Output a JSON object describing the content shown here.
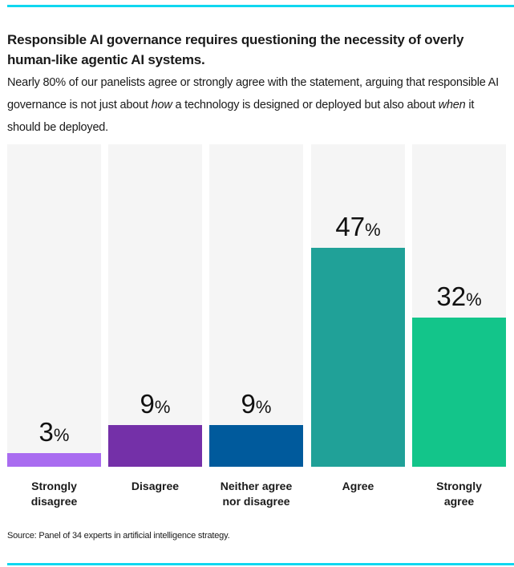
{
  "header": {
    "title": "Responsible AI governance requires questioning the necessity of overly human-like agentic AI systems.",
    "subtitle_parts": {
      "p1": "Nearly 80% of our panelists agree or strongly agree with the statement, arguing that responsible AI governance is not just about ",
      "em1": "how",
      "p2": " a technology is designed or deployed but also about ",
      "em2": "when",
      "p3": " it should be deployed."
    }
  },
  "chart_data": {
    "type": "bar",
    "title": "Responsible AI governance requires questioning the necessity of overly human-like agentic AI systems.",
    "xlabel": "",
    "ylabel": "",
    "ylim": [
      0,
      69.2
    ],
    "grid": false,
    "legend": "none",
    "categories": [
      "Strongly disagree",
      "Disagree",
      "Neither agree nor disagree",
      "Agree",
      "Strongly agree"
    ],
    "category_lines": [
      [
        "Strongly",
        "disagree"
      ],
      [
        "Disagree"
      ],
      [
        "Neither agree",
        "nor disagree"
      ],
      [
        "Agree"
      ],
      [
        "Strongly",
        "agree"
      ]
    ],
    "values": [
      3,
      9,
      9,
      47,
      32
    ],
    "value_labels": [
      "3",
      "9",
      "9",
      "47",
      "32"
    ],
    "value_suffix": "%",
    "colors": [
      "#a96cf0",
      "#7430a8",
      "#005a9c",
      "#20a198",
      "#13c58a"
    ],
    "background_color": "#f5f5f5"
  },
  "source": "Source: Panel of 34 experts in artificial intelligence strategy.",
  "accent_color": "#0fd7f0"
}
